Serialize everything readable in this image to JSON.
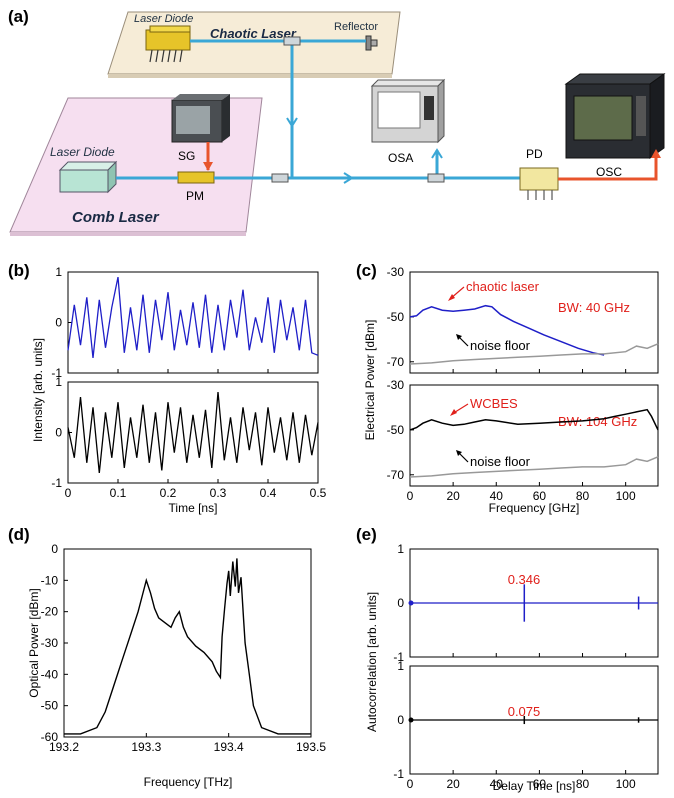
{
  "panel_labels": {
    "a": "(a)",
    "b": "(b)",
    "c": "(c)",
    "d": "(d)",
    "e": "(e)"
  },
  "setup": {
    "chaotic_laser_title": "Chaotic Laser",
    "chaotic_laser_diode": "Laser Diode",
    "reflector": "Reflector",
    "comb_laser_title": "Comb Laser",
    "comb_laser_diode": "Laser Diode",
    "sg": "SG",
    "pm": "PM",
    "osa": "OSA",
    "pd": "PD",
    "osc": "OSC",
    "colors": {
      "fiber": "#3aa7d6",
      "rf": "#e8542c",
      "comb_panel": "#f6dff0",
      "chaotic_panel": "#f6ecd7"
    }
  },
  "chart_data": [
    {
      "id": "b",
      "type": "line",
      "xlabel": "Time [ns]",
      "ylabel": "Intensity [arb. units]",
      "xlim": [
        0,
        0.5
      ],
      "xticks": [
        "0",
        "0.1",
        "0.2",
        "0.3",
        "0.4",
        "0.5"
      ],
      "subplots": [
        {
          "name": "top",
          "color": "#1f1fc8",
          "ylim": [
            -1,
            1
          ],
          "yticks": [
            "1",
            "0",
            "-1"
          ],
          "x": [
            0,
            0.0125,
            0.025,
            0.0375,
            0.05,
            0.0625,
            0.075,
            0.0875,
            0.1,
            0.1125,
            0.125,
            0.1375,
            0.15,
            0.1625,
            0.175,
            0.1875,
            0.2,
            0.2125,
            0.225,
            0.2375,
            0.25,
            0.2625,
            0.275,
            0.2875,
            0.3,
            0.3125,
            0.325,
            0.3375,
            0.35,
            0.3625,
            0.375,
            0.3875,
            0.4,
            0.4125,
            0.425,
            0.4375,
            0.45,
            0.4625,
            0.475,
            0.4875,
            0.5
          ],
          "y": [
            -0.55,
            0.35,
            -0.45,
            0.5,
            -0.7,
            0.45,
            -0.5,
            0.3,
            0.9,
            -0.6,
            0.3,
            -0.55,
            0.55,
            -0.6,
            0.45,
            -0.35,
            0.6,
            -0.55,
            0.25,
            -0.45,
            0.4,
            -0.5,
            0.55,
            -0.6,
            0.35,
            -0.55,
            0.45,
            -0.3,
            0.65,
            -0.55,
            0.1,
            -0.4,
            0.5,
            -0.6,
            0.45,
            -0.35,
            0.3,
            -0.55,
            0.45,
            -0.6,
            -0.65
          ]
        },
        {
          "name": "bottom",
          "color": "#000000",
          "ylim": [
            -1,
            1
          ],
          "yticks": [
            "1",
            "0",
            "-1"
          ],
          "x": [
            0,
            0.0125,
            0.025,
            0.0375,
            0.05,
            0.0625,
            0.075,
            0.0875,
            0.1,
            0.1125,
            0.125,
            0.1375,
            0.15,
            0.1625,
            0.175,
            0.1875,
            0.2,
            0.2125,
            0.225,
            0.2375,
            0.25,
            0.2625,
            0.275,
            0.2875,
            0.3,
            0.3125,
            0.325,
            0.3375,
            0.35,
            0.3625,
            0.375,
            0.3875,
            0.4,
            0.4125,
            0.425,
            0.4375,
            0.45,
            0.4625,
            0.475,
            0.4875,
            0.5
          ],
          "y": [
            0.1,
            -0.5,
            0.7,
            -0.6,
            0.5,
            -0.8,
            0.4,
            -0.5,
            0.6,
            -0.7,
            0.3,
            -0.5,
            0.55,
            -0.6,
            0.4,
            -0.75,
            0.6,
            -0.4,
            0.5,
            -0.6,
            0.35,
            -0.5,
            0.45,
            -0.7,
            0.8,
            -0.55,
            0.3,
            -0.6,
            0.5,
            -0.35,
            0.4,
            -0.65,
            0.5,
            -0.4,
            0.3,
            -0.55,
            0.4,
            -0.6,
            0.35,
            -0.45,
            0.2
          ]
        }
      ]
    },
    {
      "id": "c",
      "type": "line",
      "xlabel": "Frequency [GHz]",
      "ylabel": "Electrical Power [dBm]",
      "xlim": [
        0,
        115
      ],
      "xticks": [
        "0",
        "20",
        "40",
        "60",
        "80",
        "100"
      ],
      "subplots": [
        {
          "name": "top",
          "ylim": [
            -75,
            -30
          ],
          "yticks": [
            "-30",
            "-50",
            "-70"
          ],
          "series": [
            {
              "name": "chaotic laser",
              "color": "#1f1fc8",
              "x": [
                0,
                3,
                6,
                10,
                15,
                20,
                25,
                30,
                35,
                38,
                42,
                48,
                55,
                62,
                70,
                78,
                85,
                90
              ],
              "y": [
                -50,
                -49.5,
                -47,
                -45.5,
                -47,
                -47.5,
                -47,
                -46.5,
                -45,
                -45.5,
                -49,
                -52,
                -55,
                -58,
                -61,
                -64,
                -66,
                -67
              ]
            },
            {
              "name": "noise floor",
              "color": "#999999",
              "x": [
                0,
                10,
                20,
                30,
                40,
                50,
                60,
                70,
                80,
                90,
                100,
                105,
                110,
                115
              ],
              "y": [
                -71,
                -70.5,
                -69.5,
                -69,
                -68.5,
                -68,
                -67.5,
                -67,
                -66.5,
                -66.5,
                -65.5,
                -63,
                -64,
                -62
              ]
            }
          ],
          "annotations": [
            "chaotic laser",
            "BW: 40 GHz",
            "noise floor"
          ]
        },
        {
          "name": "bottom",
          "ylim": [
            -75,
            -30
          ],
          "yticks": [
            "-30",
            "-50",
            "-70"
          ],
          "series": [
            {
              "name": "WCBES",
              "color": "#000000",
              "x": [
                0,
                3,
                6,
                10,
                15,
                20,
                25,
                30,
                35,
                40,
                50,
                60,
                70,
                80,
                90,
                95,
                100,
                105,
                110,
                112,
                115
              ],
              "y": [
                -50,
                -49,
                -47,
                -45.5,
                -47,
                -48,
                -47.5,
                -46.5,
                -45.5,
                -46,
                -47.5,
                -47,
                -46.5,
                -46,
                -45,
                -44,
                -43,
                -42,
                -41,
                -44,
                -50
              ]
            },
            {
              "name": "noise floor",
              "color": "#999999",
              "x": [
                0,
                10,
                20,
                30,
                40,
                50,
                60,
                70,
                80,
                90,
                100,
                105,
                110,
                115
              ],
              "y": [
                -71,
                -70.5,
                -69.5,
                -69,
                -68.5,
                -68,
                -67.5,
                -67,
                -66.5,
                -66.5,
                -65.5,
                -63,
                -64,
                -62
              ]
            }
          ],
          "annotations": [
            "WCBES",
            "BW: 104 GHz",
            "noise floor"
          ]
        }
      ]
    },
    {
      "id": "d",
      "type": "line",
      "xlabel": "Frequency [THz]",
      "ylabel": "Optical Power [dBm]",
      "xlim": [
        193.2,
        193.5
      ],
      "ylim": [
        -60,
        0
      ],
      "xticks": [
        "193.2",
        "193.3",
        "193.4",
        "193.5"
      ],
      "yticks": [
        "0",
        "-10",
        "-20",
        "-30",
        "-40",
        "-50",
        "-60"
      ],
      "series": [
        {
          "name": "spectrum",
          "color": "#000000",
          "x": [
            193.2,
            193.22,
            193.24,
            193.25,
            193.26,
            193.27,
            193.28,
            193.29,
            193.295,
            193.3,
            193.305,
            193.31,
            193.315,
            193.32,
            193.33,
            193.335,
            193.34,
            193.345,
            193.35,
            193.36,
            193.37,
            193.38,
            193.385,
            193.39,
            193.392,
            193.395,
            193.398,
            193.4,
            193.402,
            193.405,
            193.408,
            193.41,
            193.412,
            193.415,
            193.418,
            193.42,
            193.425,
            193.43,
            193.44,
            193.46,
            193.5
          ],
          "y": [
            -59,
            -59,
            -57,
            -52,
            -44,
            -36,
            -28,
            -20,
            -15,
            -10,
            -14,
            -19,
            -22,
            -23,
            -25,
            -22,
            -20,
            -25,
            -28,
            -31,
            -33,
            -36,
            -39,
            -41,
            -28,
            -19,
            -11,
            -7,
            -15,
            -4,
            -12,
            -3,
            -14,
            -9,
            -22,
            -30,
            -40,
            -50,
            -57,
            -59,
            -59
          ]
        }
      ]
    },
    {
      "id": "e",
      "type": "line",
      "xlabel": "Delay Time [ns]",
      "ylabel": "Autocorrelation [arb. units]",
      "xlim": [
        0,
        115
      ],
      "xticks": [
        "0",
        "20",
        "40",
        "60",
        "80",
        "100"
      ],
      "subplots": [
        {
          "name": "top",
          "color": "#1f1fc8",
          "ylim": [
            -1,
            1
          ],
          "yticks": [
            "1",
            "0",
            "-1"
          ],
          "peaks": [
            {
              "x": 53,
              "y": 0.346
            },
            {
              "x": 106,
              "y": 0.12
            }
          ],
          "annotation": "0.346"
        },
        {
          "name": "bottom",
          "color": "#000000",
          "ylim": [
            -1,
            1
          ],
          "yticks": [
            "1",
            "0",
            "-1"
          ],
          "peaks": [
            {
              "x": 53,
              "y": 0.075
            },
            {
              "x": 106,
              "y": 0.05
            }
          ],
          "annotation": "0.075"
        }
      ]
    }
  ]
}
